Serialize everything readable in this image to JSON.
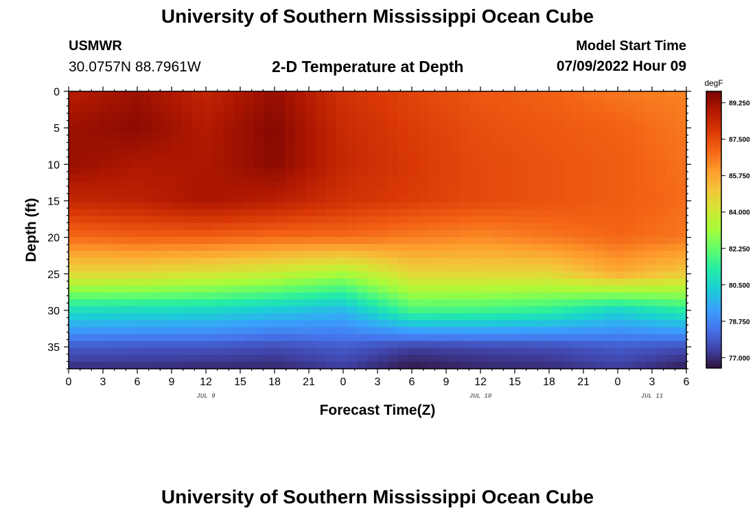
{
  "header": {
    "title": "University of Southern Mississippi Ocean Cube",
    "station": "USMWR",
    "coordinates": "30.0757N  88.7961W",
    "chart_title": "2-D Temperature at Depth",
    "start_label": "Model Start Time",
    "start_value": "07/09/2022 Hour 09"
  },
  "footer": {
    "title": "University of Southern Mississippi Ocean Cube"
  },
  "chart_data": {
    "type": "heatmap",
    "title": "2-D Temperature at Depth",
    "xlabel": "Forecast Time(Z)",
    "ylabel": "Depth (ft)",
    "x_unit": "forecast hour from 07/09/2022 00Z",
    "xlim": [
      0,
      54
    ],
    "ylim": [
      0,
      38
    ],
    "y_inverted": true,
    "x_ticks": [
      0,
      3,
      6,
      9,
      12,
      15,
      18,
      21,
      24,
      27,
      30,
      33,
      36,
      39,
      42,
      45,
      48,
      51,
      54
    ],
    "x_tick_labels": [
      "0",
      "3",
      "6",
      "9",
      "12",
      "15",
      "18",
      "21",
      "0",
      "3",
      "6",
      "9",
      "12",
      "15",
      "18",
      "21",
      "0",
      "3",
      "6"
    ],
    "y_ticks": [
      0,
      5,
      10,
      15,
      20,
      25,
      30,
      35
    ],
    "y_tick_labels": [
      "0",
      "5",
      "10",
      "15",
      "20",
      "25",
      "30",
      "35"
    ],
    "date_labels": [
      {
        "text": "JUL 9",
        "hour": 12
      },
      {
        "text": "JUL 10",
        "hour": 36
      },
      {
        "text": "JUL 11",
        "hour": 51
      }
    ],
    "colorbar": {
      "unit": "degF",
      "min": 76.5,
      "max": 89.8,
      "ticks": [
        89.25,
        87.5,
        85.75,
        84.0,
        82.25,
        80.5,
        78.75,
        77.0
      ],
      "tick_labels": [
        "89.250",
        "87.500",
        "85.750",
        "84.000",
        "82.250",
        "80.500",
        "78.750",
        "77.000"
      ],
      "colors": [
        "#30123b",
        "#4145ab",
        "#4675ed",
        "#39a2fc",
        "#1bcfd4",
        "#24eca6",
        "#61fc6c",
        "#a4fc3b",
        "#d1e834",
        "#f3c63a",
        "#fe9b2d",
        "#f36315",
        "#d93806",
        "#b11901",
        "#7a0402"
      ]
    },
    "grid_hours": [
      0,
      6,
      12,
      18,
      24,
      30,
      36,
      42,
      48,
      54
    ],
    "grid_depths": [
      0,
      5,
      10,
      15,
      20,
      25,
      30,
      35,
      38
    ],
    "values": [
      [
        88.7,
        89.2,
        88.5,
        89.3,
        88.1,
        87.6,
        87.2,
        87.0,
        86.6,
        86.4
      ],
      [
        89.2,
        89.5,
        88.8,
        89.6,
        88.3,
        87.8,
        87.4,
        87.2,
        87.0,
        86.6
      ],
      [
        89.3,
        88.9,
        88.9,
        89.5,
        88.4,
        87.9,
        87.5,
        87.3,
        87.1,
        86.7
      ],
      [
        88.4,
        88.6,
        89.0,
        88.7,
        88.1,
        87.8,
        87.5,
        87.3,
        87.1,
        86.8
      ],
      [
        86.8,
        87.0,
        87.0,
        86.8,
        86.8,
        86.5,
        86.3,
        86.6,
        86.9,
        86.6
      ],
      [
        84.5,
        84.5,
        84.2,
        83.8,
        83.2,
        84.6,
        84.6,
        84.6,
        85.6,
        84.9
      ],
      [
        80.8,
        80.7,
        80.6,
        80.2,
        79.8,
        81.8,
        81.7,
        81.4,
        80.5,
        81.3
      ],
      [
        77.9,
        77.8,
        77.8,
        77.6,
        77.9,
        77.4,
        77.5,
        77.6,
        77.9,
        77.7
      ],
      [
        77.0,
        77.0,
        76.9,
        76.9,
        77.3,
        76.6,
        76.9,
        77.0,
        77.3,
        76.7
      ]
    ]
  }
}
